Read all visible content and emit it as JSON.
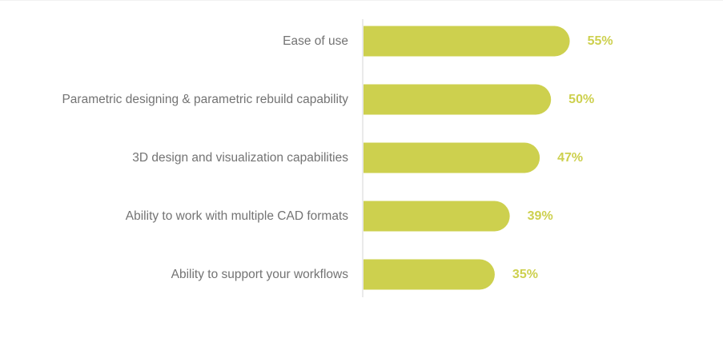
{
  "chart_data": {
    "type": "bar",
    "orientation": "horizontal",
    "categories": [
      "Ease of use",
      "Parametric designing & parametric rebuild capability",
      "3D design and visualization capabilities",
      "Ability to work with multiple CAD formats",
      "Ability to support your workflows"
    ],
    "values": [
      55,
      50,
      47,
      39,
      35
    ],
    "value_labels": [
      "55%",
      "50%",
      "47%",
      "39%",
      "35%"
    ],
    "title": "",
    "xlabel": "",
    "ylabel": "",
    "xlim": [
      0,
      100
    ],
    "grid": false,
    "legend": "none",
    "colors": {
      "bar": "#cdd04e",
      "value_text": "#cdd04e",
      "category_text": "#737373",
      "axis": "#d6d6d6"
    }
  }
}
